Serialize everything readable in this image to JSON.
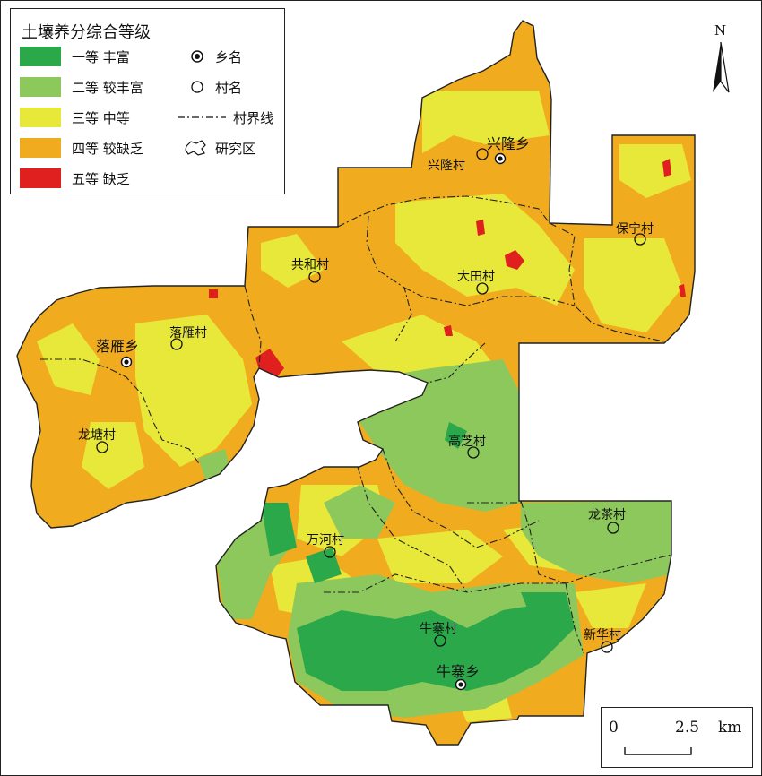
{
  "legend": {
    "title": "土壤养分综合等级",
    "grades": [
      {
        "text": "一等 丰富",
        "color": "#2aa84a"
      },
      {
        "text": "二等 较丰富",
        "color": "#8dc85c"
      },
      {
        "text": "三等 中等",
        "color": "#e8e83a"
      },
      {
        "text": "四等 较缺乏",
        "color": "#f0ac1e"
      },
      {
        "text": "五等 缺乏",
        "color": "#e0201e"
      }
    ],
    "symbols": {
      "township": "乡名",
      "village": "村名",
      "boundary": "村界线",
      "study_area": "研究区"
    }
  },
  "north": "N",
  "scale": {
    "zero": "0",
    "distance": "2.5",
    "unit": "km"
  },
  "places": {
    "xinglong_xiang": "兴隆乡",
    "xinglong_cun": "兴隆村",
    "baoning_cun": "保宁村",
    "gonghe_cun": "共和村",
    "datian_cun": "大田村",
    "luoyan_xiang": "落雁乡",
    "luoyan_cun": "落雁村",
    "longtang_cun": "龙塘村",
    "gaozhi_cun": "高芝村",
    "longcha_cun": "龙茶村",
    "wanhe_cun": "万河村",
    "niuzhai_cun": "牛寨村",
    "xinhua_cun": "新华村",
    "niuzhai_xiang": "牛寨乡"
  }
}
